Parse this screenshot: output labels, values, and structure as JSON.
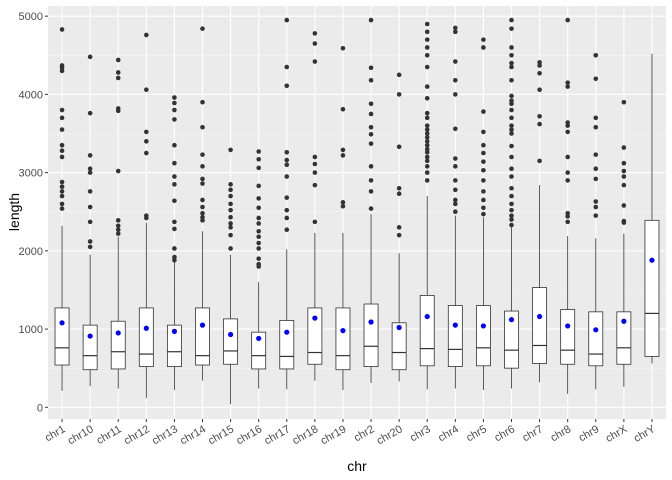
{
  "chart_data": {
    "type": "boxplot",
    "xlabel": "chr",
    "ylabel": "length",
    "ylim": [
      -150,
      5130
    ],
    "yticks": [
      0,
      1000,
      2000,
      3000,
      4000,
      5000
    ],
    "grid": true,
    "legend": "none",
    "colors": {
      "panel_bg": "#ebebeb",
      "grid_major": "#ffffff",
      "grid_minor": "#f5f5f5",
      "box_fill": "#ffffff",
      "box_stroke": "#333333",
      "outlier": "#333333",
      "mean_point": "#0000ff"
    },
    "categories": [
      "chr1",
      "chr10",
      "chr11",
      "chr12",
      "chr13",
      "chr14",
      "chr15",
      "chr16",
      "chr17",
      "chr18",
      "chr19",
      "chr2",
      "chr20",
      "chr3",
      "chr4",
      "chr5",
      "chr6",
      "chr7",
      "chr8",
      "chr9",
      "chrX",
      "chrY"
    ],
    "boxes": [
      {
        "min": 210,
        "q1": 540,
        "median": 760,
        "q3": 1270,
        "max": 2320,
        "mean": 1080,
        "outliers": [
          2540,
          2600,
          2700,
          2760,
          2820,
          2880,
          3200,
          3280,
          3350,
          3550,
          3700,
          3800,
          4300,
          4340,
          4370,
          4830
        ]
      },
      {
        "min": 270,
        "q1": 480,
        "median": 660,
        "q3": 1050,
        "max": 1950,
        "mean": 910,
        "outliers": [
          2050,
          2120,
          2370,
          2560,
          2760,
          3000,
          3050,
          3220,
          3760,
          4480
        ]
      },
      {
        "min": 240,
        "q1": 490,
        "median": 710,
        "q3": 1100,
        "max": 2180,
        "mean": 950,
        "outliers": [
          2220,
          2270,
          2320,
          2390,
          3020,
          3790,
          3820,
          4210,
          4280,
          4440
        ]
      },
      {
        "min": 120,
        "q1": 520,
        "median": 680,
        "q3": 1270,
        "max": 2360,
        "mean": 1010,
        "outliers": [
          2420,
          2450,
          3250,
          3400,
          3520,
          4060,
          4760
        ]
      },
      {
        "min": 220,
        "q1": 520,
        "median": 710,
        "q3": 1050,
        "max": 1860,
        "mean": 970,
        "outliers": [
          1880,
          1920,
          2030,
          2280,
          2370,
          2640,
          2850,
          2950,
          3120,
          3350,
          3680,
          3800,
          3890,
          3960
        ]
      },
      {
        "min": 340,
        "q1": 540,
        "median": 660,
        "q3": 1270,
        "max": 2250,
        "mean": 1050,
        "outliers": [
          2390,
          2430,
          2480,
          2560,
          2650,
          2860,
          2920,
          3080,
          3230,
          3580,
          3900,
          4840
        ]
      },
      {
        "min": 40,
        "q1": 550,
        "median": 720,
        "q3": 1130,
        "max": 1950,
        "mean": 930,
        "outliers": [
          2030,
          2200,
          2300,
          2350,
          2430,
          2520,
          2600,
          2700,
          2780,
          2850,
          3290
        ]
      },
      {
        "min": 240,
        "q1": 490,
        "median": 660,
        "q3": 960,
        "max": 1600,
        "mean": 880,
        "outliers": [
          1800,
          1830,
          1900,
          2030,
          2100,
          2180,
          2250,
          2350,
          2420,
          2550,
          2670,
          2830,
          3060,
          3170,
          3270
        ]
      },
      {
        "min": 230,
        "q1": 490,
        "median": 650,
        "q3": 1110,
        "max": 2020,
        "mean": 960,
        "outliers": [
          2270,
          2420,
          2520,
          2680,
          2950,
          3100,
          3160,
          3260,
          4110,
          4350,
          4950
        ]
      },
      {
        "min": 340,
        "q1": 550,
        "median": 700,
        "q3": 1270,
        "max": 2230,
        "mean": 1140,
        "outliers": [
          2370,
          2840,
          3000,
          3110,
          3200,
          4420,
          4650,
          4780
        ]
      },
      {
        "min": 220,
        "q1": 480,
        "median": 660,
        "q3": 1270,
        "max": 2230,
        "mean": 980,
        "outliers": [
          2570,
          2620,
          3220,
          3290,
          3810,
          4590
        ]
      },
      {
        "min": 310,
        "q1": 520,
        "median": 780,
        "q3": 1320,
        "max": 2470,
        "mean": 1090,
        "outliers": [
          2540,
          2760,
          2900,
          3080,
          3370,
          3490,
          3580,
          3750,
          3880,
          4180,
          4340,
          4950
        ]
      },
      {
        "min": 330,
        "q1": 480,
        "median": 700,
        "q3": 1080,
        "max": 1970,
        "mean": 1020,
        "outliers": [
          2200,
          2300,
          2730,
          2800,
          3330,
          4000,
          4250
        ]
      },
      {
        "min": 230,
        "q1": 530,
        "median": 750,
        "q3": 1430,
        "max": 2700,
        "mean": 1160,
        "outliers": [
          2900,
          3000,
          3080,
          3150,
          3200,
          3260,
          3300,
          3350,
          3400,
          3450,
          3500,
          3550,
          3600,
          3700,
          3760,
          3950,
          4100,
          4350,
          4500,
          4600,
          4700,
          4800,
          4900
        ]
      },
      {
        "min": 240,
        "q1": 520,
        "median": 740,
        "q3": 1300,
        "max": 2450,
        "mean": 1050,
        "outliers": [
          2500,
          2600,
          2650,
          2780,
          2900,
          3080,
          3180,
          3560,
          4000,
          4180,
          4420,
          4800,
          4850
        ]
      },
      {
        "min": 220,
        "q1": 530,
        "median": 760,
        "q3": 1300,
        "max": 2430,
        "mean": 1040,
        "outliers": [
          2470,
          2550,
          2650,
          2760,
          2900,
          3030,
          3140,
          3250,
          3350,
          3520,
          3780,
          4600,
          4700
        ]
      },
      {
        "min": 240,
        "q1": 500,
        "median": 730,
        "q3": 1230,
        "max": 2300,
        "mean": 1120,
        "outliers": [
          2330,
          2400,
          2450,
          2520,
          2600,
          2700,
          2800,
          2950,
          3050,
          3200,
          3340,
          3500,
          3550,
          3600,
          3700,
          3800,
          3880,
          3920,
          3980,
          4180,
          4350,
          4400,
          4500,
          4600,
          4840,
          4950
        ]
      },
      {
        "min": 320,
        "q1": 560,
        "median": 790,
        "q3": 1530,
        "max": 2840,
        "mean": 1160,
        "outliers": [
          3150,
          3620,
          3720,
          4060,
          4270,
          4370,
          4410
        ]
      },
      {
        "min": 170,
        "q1": 550,
        "median": 730,
        "q3": 1250,
        "max": 2190,
        "mean": 1040,
        "outliers": [
          2370,
          2440,
          2480,
          2900,
          3000,
          3200,
          3520,
          3600,
          3640,
          4100,
          4150,
          4950
        ]
      },
      {
        "min": 230,
        "q1": 530,
        "median": 680,
        "q3": 1220,
        "max": 2160,
        "mean": 990,
        "outliers": [
          2450,
          2560,
          2630,
          2920,
          3050,
          3230,
          3580,
          3700,
          4200,
          4500
        ]
      },
      {
        "min": 260,
        "q1": 550,
        "median": 760,
        "q3": 1220,
        "max": 2220,
        "mean": 1100,
        "outliers": [
          2360,
          2380,
          2580,
          2840,
          2950,
          3020,
          3120,
          3320,
          3900
        ]
      },
      {
        "min": 560,
        "q1": 650,
        "median": 1200,
        "q3": 2390,
        "max": 4520,
        "mean": 1880,
        "outliers": []
      }
    ]
  }
}
